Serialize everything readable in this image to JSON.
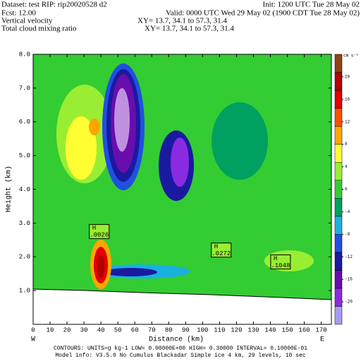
{
  "chart_data": {
    "type": "contour",
    "header": {
      "dataset": "Dataset: test   RIP: rip20020528  d2",
      "init": "Init: 1200 UTC Tue 28 May 02",
      "fcst": "Fcst:    12.00",
      "valid": "Valid: 0000 UTC Wed 29 May 02 (1900 CDT Tue 28 May 02)",
      "field1": "Vertical velocity",
      "xy1": "XY=  13.7, 34.1 to  57.3, 31.4",
      "field2": "Total cloud mixing ratio",
      "xy2": "XY=  13.7, 34.1 to  57.3, 31.4"
    },
    "xlabel": "Distance (km)",
    "ylabel": "Height (km)",
    "left_end": "W",
    "right_end": "E",
    "xlim": [
      0,
      176
    ],
    "xticks": [
      0,
      10,
      20,
      30,
      40,
      50,
      60,
      70,
      80,
      90,
      100,
      110,
      120,
      130,
      140,
      150,
      160,
      170
    ],
    "ylim": [
      0,
      8
    ],
    "yticks": [
      {
        "value": 1,
        "label": "1.0"
      },
      {
        "value": 2,
        "label": "2.0"
      },
      {
        "value": 3,
        "label": "3.0"
      },
      {
        "value": 4,
        "label": "4.0"
      },
      {
        "value": 5,
        "label": "5.0"
      },
      {
        "value": 6,
        "label": "6.0"
      },
      {
        "value": 7,
        "label": "7.0"
      },
      {
        "value": 8,
        "label": "8.0"
      }
    ],
    "highs": [
      {
        "label": "H",
        "value": ".0026",
        "x": 39,
        "y": 2.75
      },
      {
        "label": "H",
        "value": ".0272",
        "x": 111,
        "y": 2.2
      },
      {
        "label": "H",
        "value": ".1048",
        "x": 146,
        "y": 1.85
      }
    ],
    "colorbar": {
      "units": "cm s⁻¹",
      "lim": [
        -24,
        24
      ],
      "ticks": [
        -20,
        -16,
        -12,
        -8,
        -4,
        0,
        4,
        8,
        12,
        16,
        20
      ],
      "colors": [
        "#a89cf0",
        "#8a2be2",
        "#6a0dad",
        "#1a1aa0",
        "#2050e0",
        "#1ab0e0",
        "#00a060",
        "#33cc33",
        "#99ee33",
        "#ffff33",
        "#ffa500",
        "#ff5000",
        "#e00000",
        "#b00000",
        "#8b4513"
      ]
    },
    "footer": {
      "contours": "CONTOURS:  UNITS=g kg-1   LOW= 0.00000E+00  HIGH= 0.30000    INTERVAL=  0.10000E-01",
      "model": "Model info: V3.5.0 No Cumulus Blackadar  Simple ice    4 km,  29 levels,   10 sec"
    }
  }
}
